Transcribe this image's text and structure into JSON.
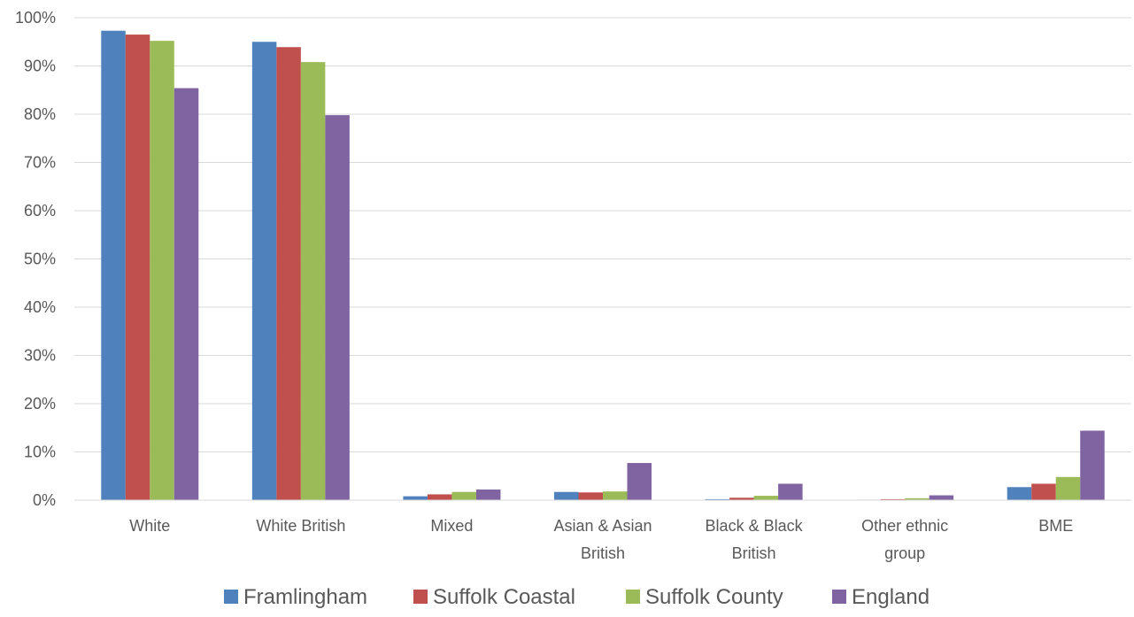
{
  "chart_data": {
    "type": "bar",
    "title": "",
    "xlabel": "",
    "ylabel": "",
    "ylim": [
      0,
      100
    ],
    "y_ticks": [
      "0%",
      "10%",
      "20%",
      "30%",
      "40%",
      "50%",
      "60%",
      "70%",
      "80%",
      "90%",
      "100%"
    ],
    "y_tick_values": [
      0,
      10,
      20,
      30,
      40,
      50,
      60,
      70,
      80,
      90,
      100
    ],
    "grid": true,
    "legend_position": "bottom",
    "categories": [
      [
        "White"
      ],
      [
        "White British"
      ],
      [
        "Mixed"
      ],
      [
        "Asian & Asian",
        "British"
      ],
      [
        "Black & Black",
        "British"
      ],
      [
        "Other ethnic",
        "group"
      ],
      [
        "BME"
      ]
    ],
    "series": [
      {
        "name": "Framlingham",
        "color": "#4f81bd",
        "values": [
          97.3,
          95.0,
          0.8,
          1.7,
          0.2,
          0.1,
          2.7
        ]
      },
      {
        "name": "Suffolk Coastal",
        "color": "#c0504d",
        "values": [
          96.5,
          93.9,
          1.2,
          1.6,
          0.5,
          0.2,
          3.4
        ]
      },
      {
        "name": "Suffolk County",
        "color": "#9bbb59",
        "values": [
          95.2,
          90.8,
          1.7,
          1.8,
          0.9,
          0.4,
          4.8
        ]
      },
      {
        "name": "England",
        "color": "#8064a2",
        "values": [
          85.4,
          79.8,
          2.2,
          7.7,
          3.4,
          1.0,
          14.4
        ]
      }
    ]
  }
}
